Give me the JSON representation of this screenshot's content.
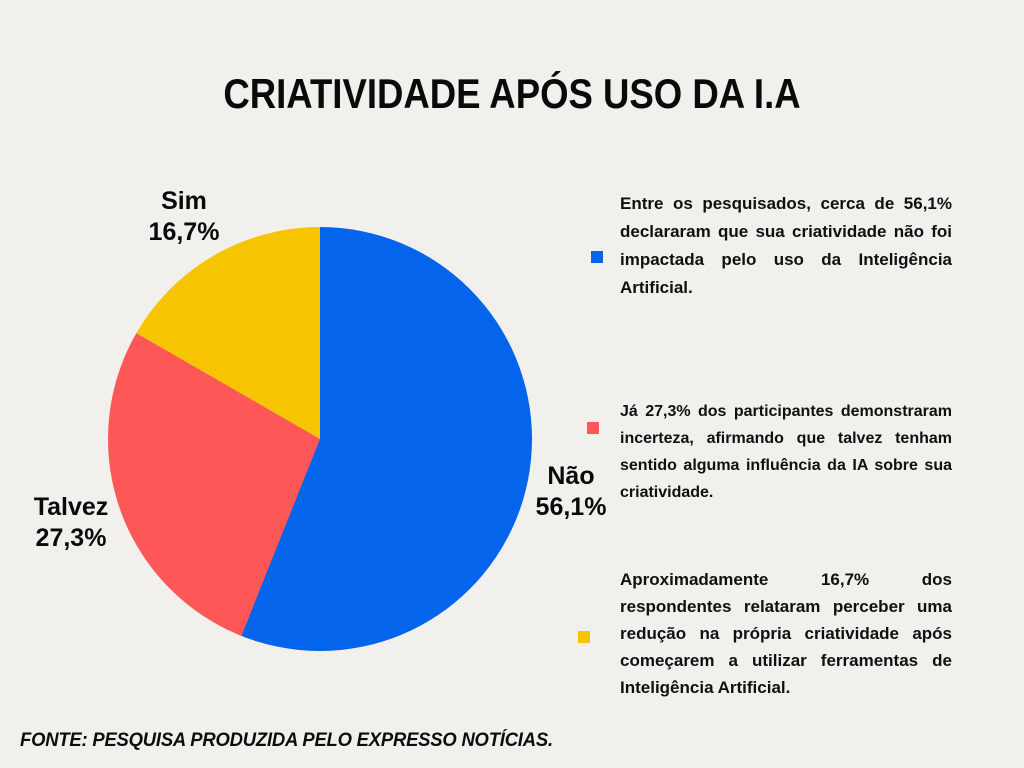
{
  "page": {
    "title": "CRIATIVIDADE APÓS USO DA I.A",
    "source_note": "FONTE: PESQUISA PRODUZIDA PELO EXPRESSO NOTÍCIAS.",
    "background_color": "#F2F0ED"
  },
  "chart_data": {
    "type": "pie",
    "title": "CRIATIVIDADE APÓS USO DA I.A",
    "start_angle_deg": 0,
    "direction": "clockwise",
    "legend_position": "right",
    "slices": [
      {
        "label": "Não",
        "value": 56.1,
        "display": "56,1%",
        "color": "#0564EC"
      },
      {
        "label": "Talvez",
        "value": 27.3,
        "display": "27,3%",
        "color": "#FD5757"
      },
      {
        "label": "Sim",
        "value": 16.7,
        "display": "16,7%",
        "color": "#F6C400"
      }
    ]
  },
  "legend": {
    "items": [
      {
        "text": "Entre os pesquisados, cerca de 56,1% declararam que sua criatividade não foi impactada pelo uso da Inteligência Artificial."
      },
      {
        "text": "Já 27,3% dos participantes demonstraram incerteza, afirmando que talvez tenham sentido alguma influência da IA sobre sua criatividade."
      },
      {
        "text": "Aproximadamente 16,7% dos respondentes relataram perceber uma redução na própria criatividade após começarem a utilizar ferramentas de Inteligência Artificial."
      }
    ]
  }
}
